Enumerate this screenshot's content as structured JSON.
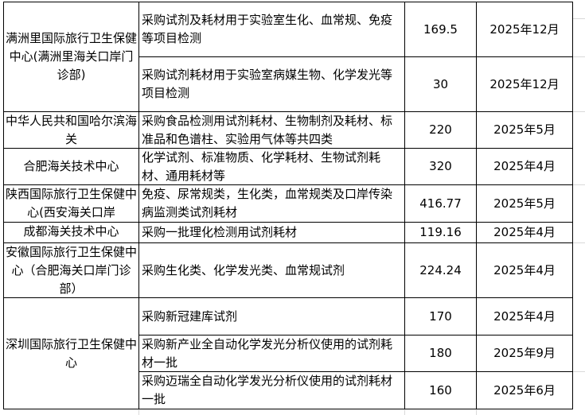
{
  "rows": [
    {
      "org": "满洲里国际旅行卫生保健中心(满洲里海关口岸门诊部)",
      "content": "采购试剂及耗材用于实验室生化、血常规、免疫等项目检测",
      "amount": "169.5",
      "date": "2025年12月"
    },
    {
      "content": "采购试剂耗材用于实验室病媒生物、化学发光等项目检测",
      "amount": "30",
      "date": "2025年12月"
    },
    {
      "org": "中华人民共和国哈尔滨海关",
      "content": "采购食品检测用试剂耗材、生物制剂及耗材、标准品和色谱柱、实验用气体等共四类",
      "amount": "220",
      "date": "2025年5月"
    },
    {
      "org": "合肥海关技术中心",
      "content": "化学试剂、标准物质、化学耗材、生物试剂耗材、通用耗材等",
      "amount": "320",
      "date": "2025年4月"
    },
    {
      "org": "陕西国际旅行卫生保健中心(西安海关口岸",
      "content": "免疫、尿常规类，生化类，血常规类及口岸传染病监测类试剂耗材",
      "amount": "416.77",
      "date": "2025年5月"
    },
    {
      "org": "成都海关技术中心",
      "content": "采购一批理化检测用试剂耗材",
      "amount": "119.16",
      "date": "2025年4月"
    },
    {
      "org": "安徽国际旅行卫生保健中心（合肥海关口岸门诊部）",
      "content": "采购生化类、化学发光类、血常规试剂",
      "amount": "224.24",
      "date": "2025年4月"
    },
    {
      "org": "深圳国际旅行卫生保健中心",
      "content": "采购新冠建库试剂",
      "amount": "170",
      "date": "2025年4月"
    },
    {
      "content": "采购新产业全自动化学发光分析仪使用的试剂耗材一批",
      "amount": "180",
      "date": "2025年9月"
    },
    {
      "content": "采购迈瑞全自动化学发光分析仪使用的试剂耗材一批",
      "amount": "160",
      "date": "2025年6月"
    }
  ]
}
